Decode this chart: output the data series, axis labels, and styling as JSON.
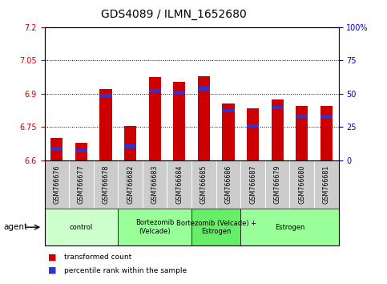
{
  "title": "GDS4089 / ILMN_1652680",
  "samples": [
    "GSM766676",
    "GSM766677",
    "GSM766678",
    "GSM766682",
    "GSM766683",
    "GSM766684",
    "GSM766685",
    "GSM766686",
    "GSM766687",
    "GSM766679",
    "GSM766680",
    "GSM766681"
  ],
  "red_values": [
    6.7,
    6.68,
    6.92,
    6.755,
    6.975,
    6.955,
    6.98,
    6.855,
    6.835,
    6.875,
    6.845,
    6.845
  ],
  "blue_positions": [
    6.645,
    6.635,
    6.885,
    6.655,
    6.905,
    6.895,
    6.915,
    6.815,
    6.745,
    6.83,
    6.79,
    6.79
  ],
  "blue_heights": [
    0.016,
    0.016,
    0.016,
    0.016,
    0.016,
    0.016,
    0.016,
    0.016,
    0.016,
    0.016,
    0.016,
    0.016
  ],
  "ymin": 6.6,
  "ymax": 7.2,
  "yticks": [
    6.6,
    6.75,
    6.9,
    7.05,
    7.2
  ],
  "ytick_labels": [
    "6.6",
    "6.75",
    "6.9",
    "7.05",
    "7.2"
  ],
  "right_yticks": [
    0,
    25,
    50,
    75,
    100
  ],
  "right_ytick_labels": [
    "0",
    "25",
    "50",
    "75",
    "100%"
  ],
  "bar_color": "#cc0000",
  "blue_color": "#3333cc",
  "bar_width": 0.5,
  "groups": [
    {
      "label": "control",
      "start": 0,
      "end": 3,
      "color": "#ccffcc"
    },
    {
      "label": "Bortezomib\n(Velcade)",
      "start": 3,
      "end": 6,
      "color": "#99ff99"
    },
    {
      "label": "Bortezomib (Velcade) +\nEstrogen",
      "start": 6,
      "end": 8,
      "color": "#66ee66"
    },
    {
      "label": "Estrogen",
      "start": 8,
      "end": 12,
      "color": "#99ff99"
    }
  ],
  "agent_label": "agent",
  "legend_red": "transformed count",
  "legend_blue": "percentile rank within the sample",
  "left_axis_color": "#cc0000",
  "right_axis_color": "#0000cc",
  "background_color": "#ffffff",
  "tick_bg_color": "#cccccc",
  "title_fontsize": 10
}
